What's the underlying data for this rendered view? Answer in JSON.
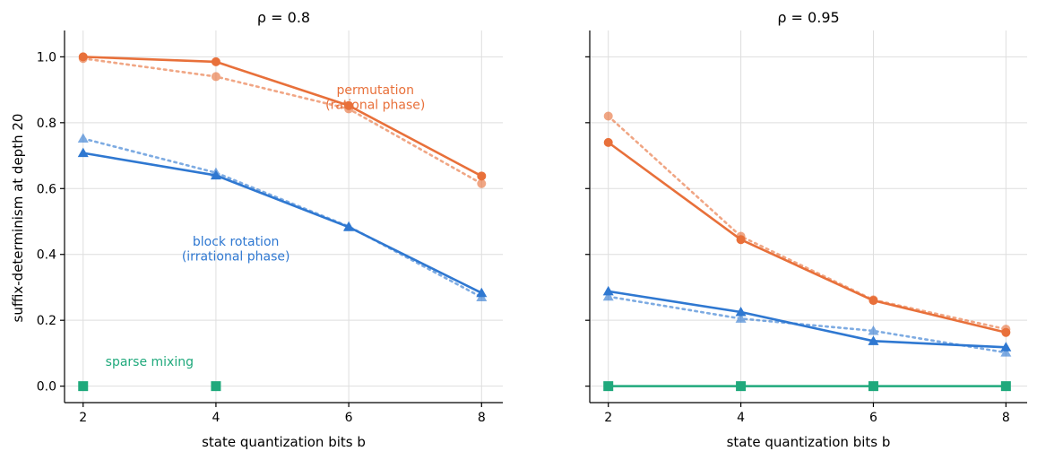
{
  "figure": {
    "ylabel": "suffix-determinism at depth 20",
    "colors": {
      "permutation": "#E8703A",
      "block": "#2F78D1",
      "sparse": "#20A97C"
    }
  },
  "chart_data": [
    {
      "type": "line",
      "title": "ρ = 0.8",
      "xlabel": "state quantization bits b",
      "x_ticks": [
        "2",
        "4",
        "6",
        "8"
      ],
      "y_ticks": [
        "0.0",
        "0.2",
        "0.4",
        "0.6",
        "0.8",
        "1.0"
      ],
      "xlim": [
        1.72,
        8.32
      ],
      "ylim": [
        -0.05,
        1.08
      ],
      "grid": true,
      "annotations": [
        {
          "text": "permutation",
          "x": 6.4,
          "y": 0.9,
          "series": "permutation"
        },
        {
          "text": "(rational phase)",
          "x": 6.4,
          "y": 0.855,
          "series": "permutation"
        },
        {
          "text": "block rotation",
          "x": 4.3,
          "y": 0.44,
          "series": "block"
        },
        {
          "text": "(irrational phase)",
          "x": 4.3,
          "y": 0.395,
          "series": "block"
        },
        {
          "text": "sparse mixing",
          "x": 3.0,
          "y": 0.075,
          "series": "sparse"
        }
      ],
      "series": [
        {
          "group": "permutation",
          "style": "solid",
          "marker": "circle",
          "x": [
            2,
            4,
            6,
            8
          ],
          "values": [
            1.0,
            0.985,
            0.852,
            0.638
          ]
        },
        {
          "group": "permutation",
          "style": "dotted",
          "marker": "circle",
          "x": [
            2,
            4,
            6,
            8
          ],
          "values": [
            0.995,
            0.94,
            0.842,
            0.615
          ]
        },
        {
          "group": "block",
          "style": "solid",
          "marker": "triangle",
          "x": [
            2,
            4,
            6,
            8
          ],
          "values": [
            0.708,
            0.64,
            0.483,
            0.283
          ]
        },
        {
          "group": "block",
          "style": "dotted",
          "marker": "triangle",
          "x": [
            2,
            4,
            6,
            8
          ],
          "values": [
            0.752,
            0.648,
            0.485,
            0.27
          ]
        },
        {
          "group": "sparse",
          "style": "none",
          "marker": "square",
          "x": [
            2,
            4
          ],
          "values": [
            0.0,
            0.0
          ]
        }
      ]
    },
    {
      "type": "line",
      "title": "ρ = 0.95",
      "xlabel": "state quantization bits b",
      "x_ticks": [
        "2",
        "4",
        "6",
        "8"
      ],
      "y_ticks": [
        "0.0",
        "0.2",
        "0.4",
        "0.6",
        "0.8",
        "1.0"
      ],
      "xlim": [
        1.72,
        8.32
      ],
      "ylim": [
        -0.05,
        1.08
      ],
      "grid": true,
      "annotations": [],
      "series": [
        {
          "group": "permutation",
          "style": "solid",
          "marker": "circle",
          "x": [
            2,
            4,
            6,
            8
          ],
          "values": [
            0.74,
            0.445,
            0.26,
            0.163
          ]
        },
        {
          "group": "permutation",
          "style": "dotted",
          "marker": "circle",
          "x": [
            2,
            4,
            6,
            8
          ],
          "values": [
            0.82,
            0.455,
            0.262,
            0.173
          ]
        },
        {
          "group": "block",
          "style": "solid",
          "marker": "triangle",
          "x": [
            2,
            4,
            6,
            8
          ],
          "values": [
            0.288,
            0.225,
            0.137,
            0.118
          ]
        },
        {
          "group": "block",
          "style": "dotted",
          "marker": "triangle",
          "x": [
            2,
            4,
            6,
            8
          ],
          "values": [
            0.272,
            0.205,
            0.168,
            0.102
          ]
        },
        {
          "group": "sparse",
          "style": "solid",
          "marker": "square",
          "x": [
            2,
            4,
            6,
            8
          ],
          "values": [
            0.0,
            0.0,
            0.0,
            0.0
          ]
        }
      ]
    }
  ]
}
